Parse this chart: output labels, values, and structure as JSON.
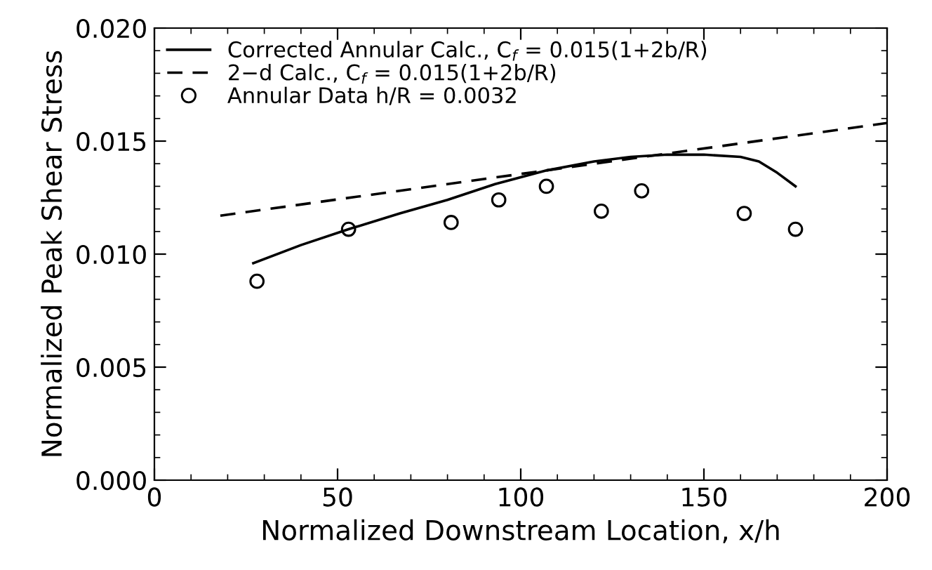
{
  "chart_data": {
    "type": "line",
    "xlabel": "Normalized Downstream Location, x/h",
    "ylabel": "Normalized Peak Shear Stress",
    "xlim": [
      0,
      200
    ],
    "xticks": [
      0,
      50,
      100,
      150,
      200
    ],
    "ylim": [
      0,
      0.02
    ],
    "yticks": [
      {
        "value": 0,
        "label": "0.000"
      },
      {
        "value": 0.005,
        "label": "0.005"
      },
      {
        "value": 0.01,
        "label": "0.010"
      },
      {
        "value": 0.015,
        "label": "0.015"
      },
      {
        "value": 0.02,
        "label": "0.020"
      }
    ],
    "grid": false,
    "legend": "top left",
    "series": [
      {
        "name": "Corrected Annular Calc., C$_{f}$ = 0.015(1+2b/R)",
        "line_style": "solid",
        "marker": "none",
        "color": "#000000",
        "x": [
          27,
          40,
          53,
          67,
          80,
          93,
          107,
          120,
          130,
          140,
          150,
          160,
          165,
          170,
          175
        ],
        "values": [
          0.0096,
          0.0104,
          0.0111,
          0.0118,
          0.0124,
          0.0131,
          0.0137,
          0.0141,
          0.0143,
          0.0144,
          0.0144,
          0.0143,
          0.0141,
          0.0136,
          0.013
        ]
      },
      {
        "name": "2−d Calc., C$_{f}$ = 0.015(1+2b/R)",
        "line_style": "dashed",
        "marker": "none",
        "color": "#000000",
        "x": [
          18,
          200
        ],
        "values": [
          0.0117,
          0.0158
        ]
      },
      {
        "name": "Annular Data h/R = 0.0032",
        "type": "scatter",
        "marker": "circle",
        "color": "#000000",
        "x": [
          28,
          53,
          81,
          94,
          107,
          122,
          133,
          161,
          175
        ],
        "values": [
          0.0088,
          0.0111,
          0.0114,
          0.0124,
          0.013,
          0.0119,
          0.0128,
          0.0118,
          0.0111
        ]
      }
    ]
  }
}
